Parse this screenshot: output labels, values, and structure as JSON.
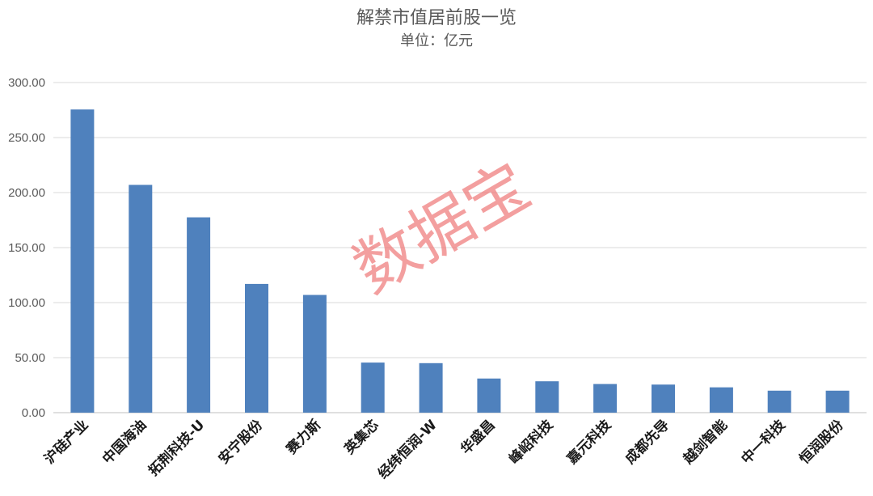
{
  "chart_data": {
    "type": "bar",
    "title": "解禁市值居前股一览",
    "subtitle": "单位：亿元",
    "categories": [
      "沪硅产业",
      "中国海油",
      "拓荆科技-U",
      "安宁股份",
      "赛力斯",
      "英集芯",
      "经纬恒润-W",
      "华盛昌",
      "峰岹科技",
      "嘉元科技",
      "成都先导",
      "越剑智能",
      "中一科技",
      "恒润股份"
    ],
    "values": [
      275.5,
      207.0,
      177.5,
      117.0,
      107.0,
      45.5,
      45.0,
      31.0,
      28.5,
      26.0,
      25.5,
      23.0,
      20.0,
      20.0
    ],
    "ylim": [
      0,
      300
    ],
    "yticks": [
      "0.00",
      "50.00",
      "100.00",
      "150.00",
      "200.00",
      "250.00",
      "300.00"
    ],
    "grid": true,
    "legend": "none",
    "bar_color": "#4f81bd",
    "watermark": "数据宝",
    "watermark_color": "#f08080"
  }
}
